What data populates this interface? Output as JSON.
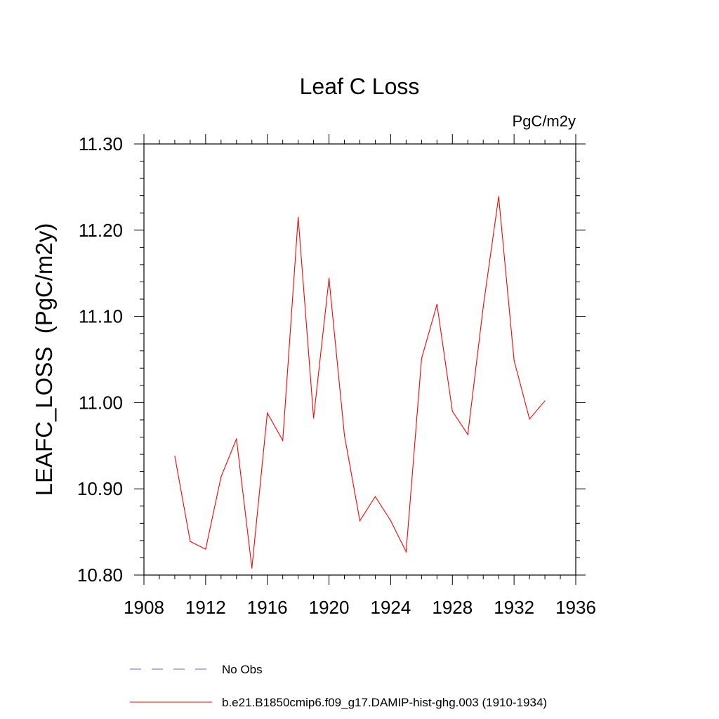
{
  "chart_data": {
    "type": "line",
    "title": "Leaf C Loss",
    "units_label": "PgC/m2y",
    "ylabel": "LEAFC_LOSS  (PgC/m2y)",
    "xlabel": "",
    "xlim": [
      1908,
      1936
    ],
    "ylim": [
      10.8,
      11.3
    ],
    "x_ticks": [
      "1908",
      "1912",
      "1916",
      "1920",
      "1924",
      "1928",
      "1932",
      "1936"
    ],
    "y_ticks": [
      "10.80",
      "10.90",
      "11.00",
      "11.10",
      "11.20",
      "11.30"
    ],
    "grid": false,
    "legend_position": "bottom",
    "series": [
      {
        "name": "No Obs",
        "color": "#6a5acd",
        "style": "dashed",
        "x": [],
        "values": []
      },
      {
        "name": "b.e21.B1850cmip6.f09_g17.DAMIP-hist-ghg.003 (1910-1934)",
        "color": "#ff0000",
        "style": "solid",
        "x": [
          1910,
          1911,
          1912,
          1913,
          1914,
          1915,
          1916,
          1917,
          1918,
          1919,
          1920,
          1921,
          1922,
          1923,
          1924,
          1925,
          1926,
          1927,
          1928,
          1929,
          1930,
          1931,
          1932,
          1933,
          1934
        ],
        "values": [
          10.938,
          10.839,
          10.83,
          10.914,
          10.958,
          10.808,
          10.988,
          10.956,
          11.215,
          10.982,
          11.144,
          10.962,
          10.863,
          10.891,
          10.863,
          10.827,
          11.051,
          11.114,
          10.99,
          10.963,
          11.111,
          11.239,
          11.049,
          10.981,
          11.002
        ]
      }
    ]
  }
}
